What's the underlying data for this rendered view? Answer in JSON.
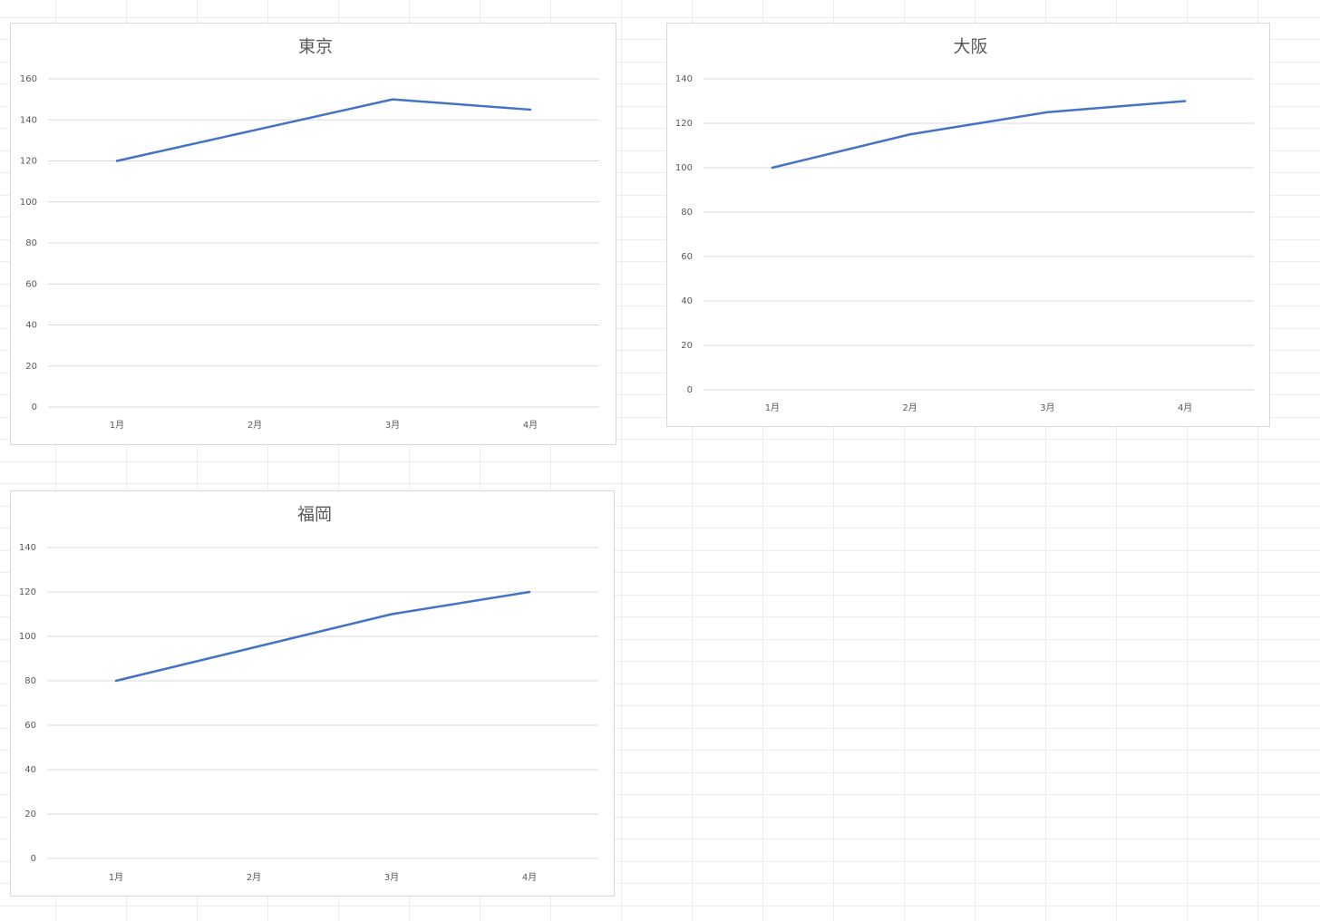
{
  "chart_data": [
    {
      "type": "line",
      "title": "東京",
      "categories": [
        "1月",
        "2月",
        "3月",
        "4月"
      ],
      "values": [
        120,
        135,
        150,
        145
      ],
      "color": "#4472c4",
      "ylim": [
        0,
        160
      ],
      "yticks": [
        0,
        20,
        40,
        60,
        80,
        100,
        120,
        140,
        160
      ],
      "grid": true
    },
    {
      "type": "line",
      "title": "大阪",
      "categories": [
        "1月",
        "2月",
        "3月",
        "4月"
      ],
      "values": [
        100,
        115,
        125,
        130
      ],
      "color": "#4472c4",
      "ylim": [
        0,
        140
      ],
      "yticks": [
        0,
        20,
        40,
        60,
        80,
        100,
        120,
        140
      ],
      "grid": true
    },
    {
      "type": "line",
      "title": "福岡",
      "categories": [
        "1月",
        "2月",
        "3月",
        "4月"
      ],
      "values": [
        80,
        95,
        110,
        120
      ],
      "color": "#4472c4",
      "ylim": [
        0,
        140
      ],
      "yticks": [
        0,
        20,
        40,
        60,
        80,
        100,
        120,
        140
      ],
      "grid": true
    }
  ]
}
